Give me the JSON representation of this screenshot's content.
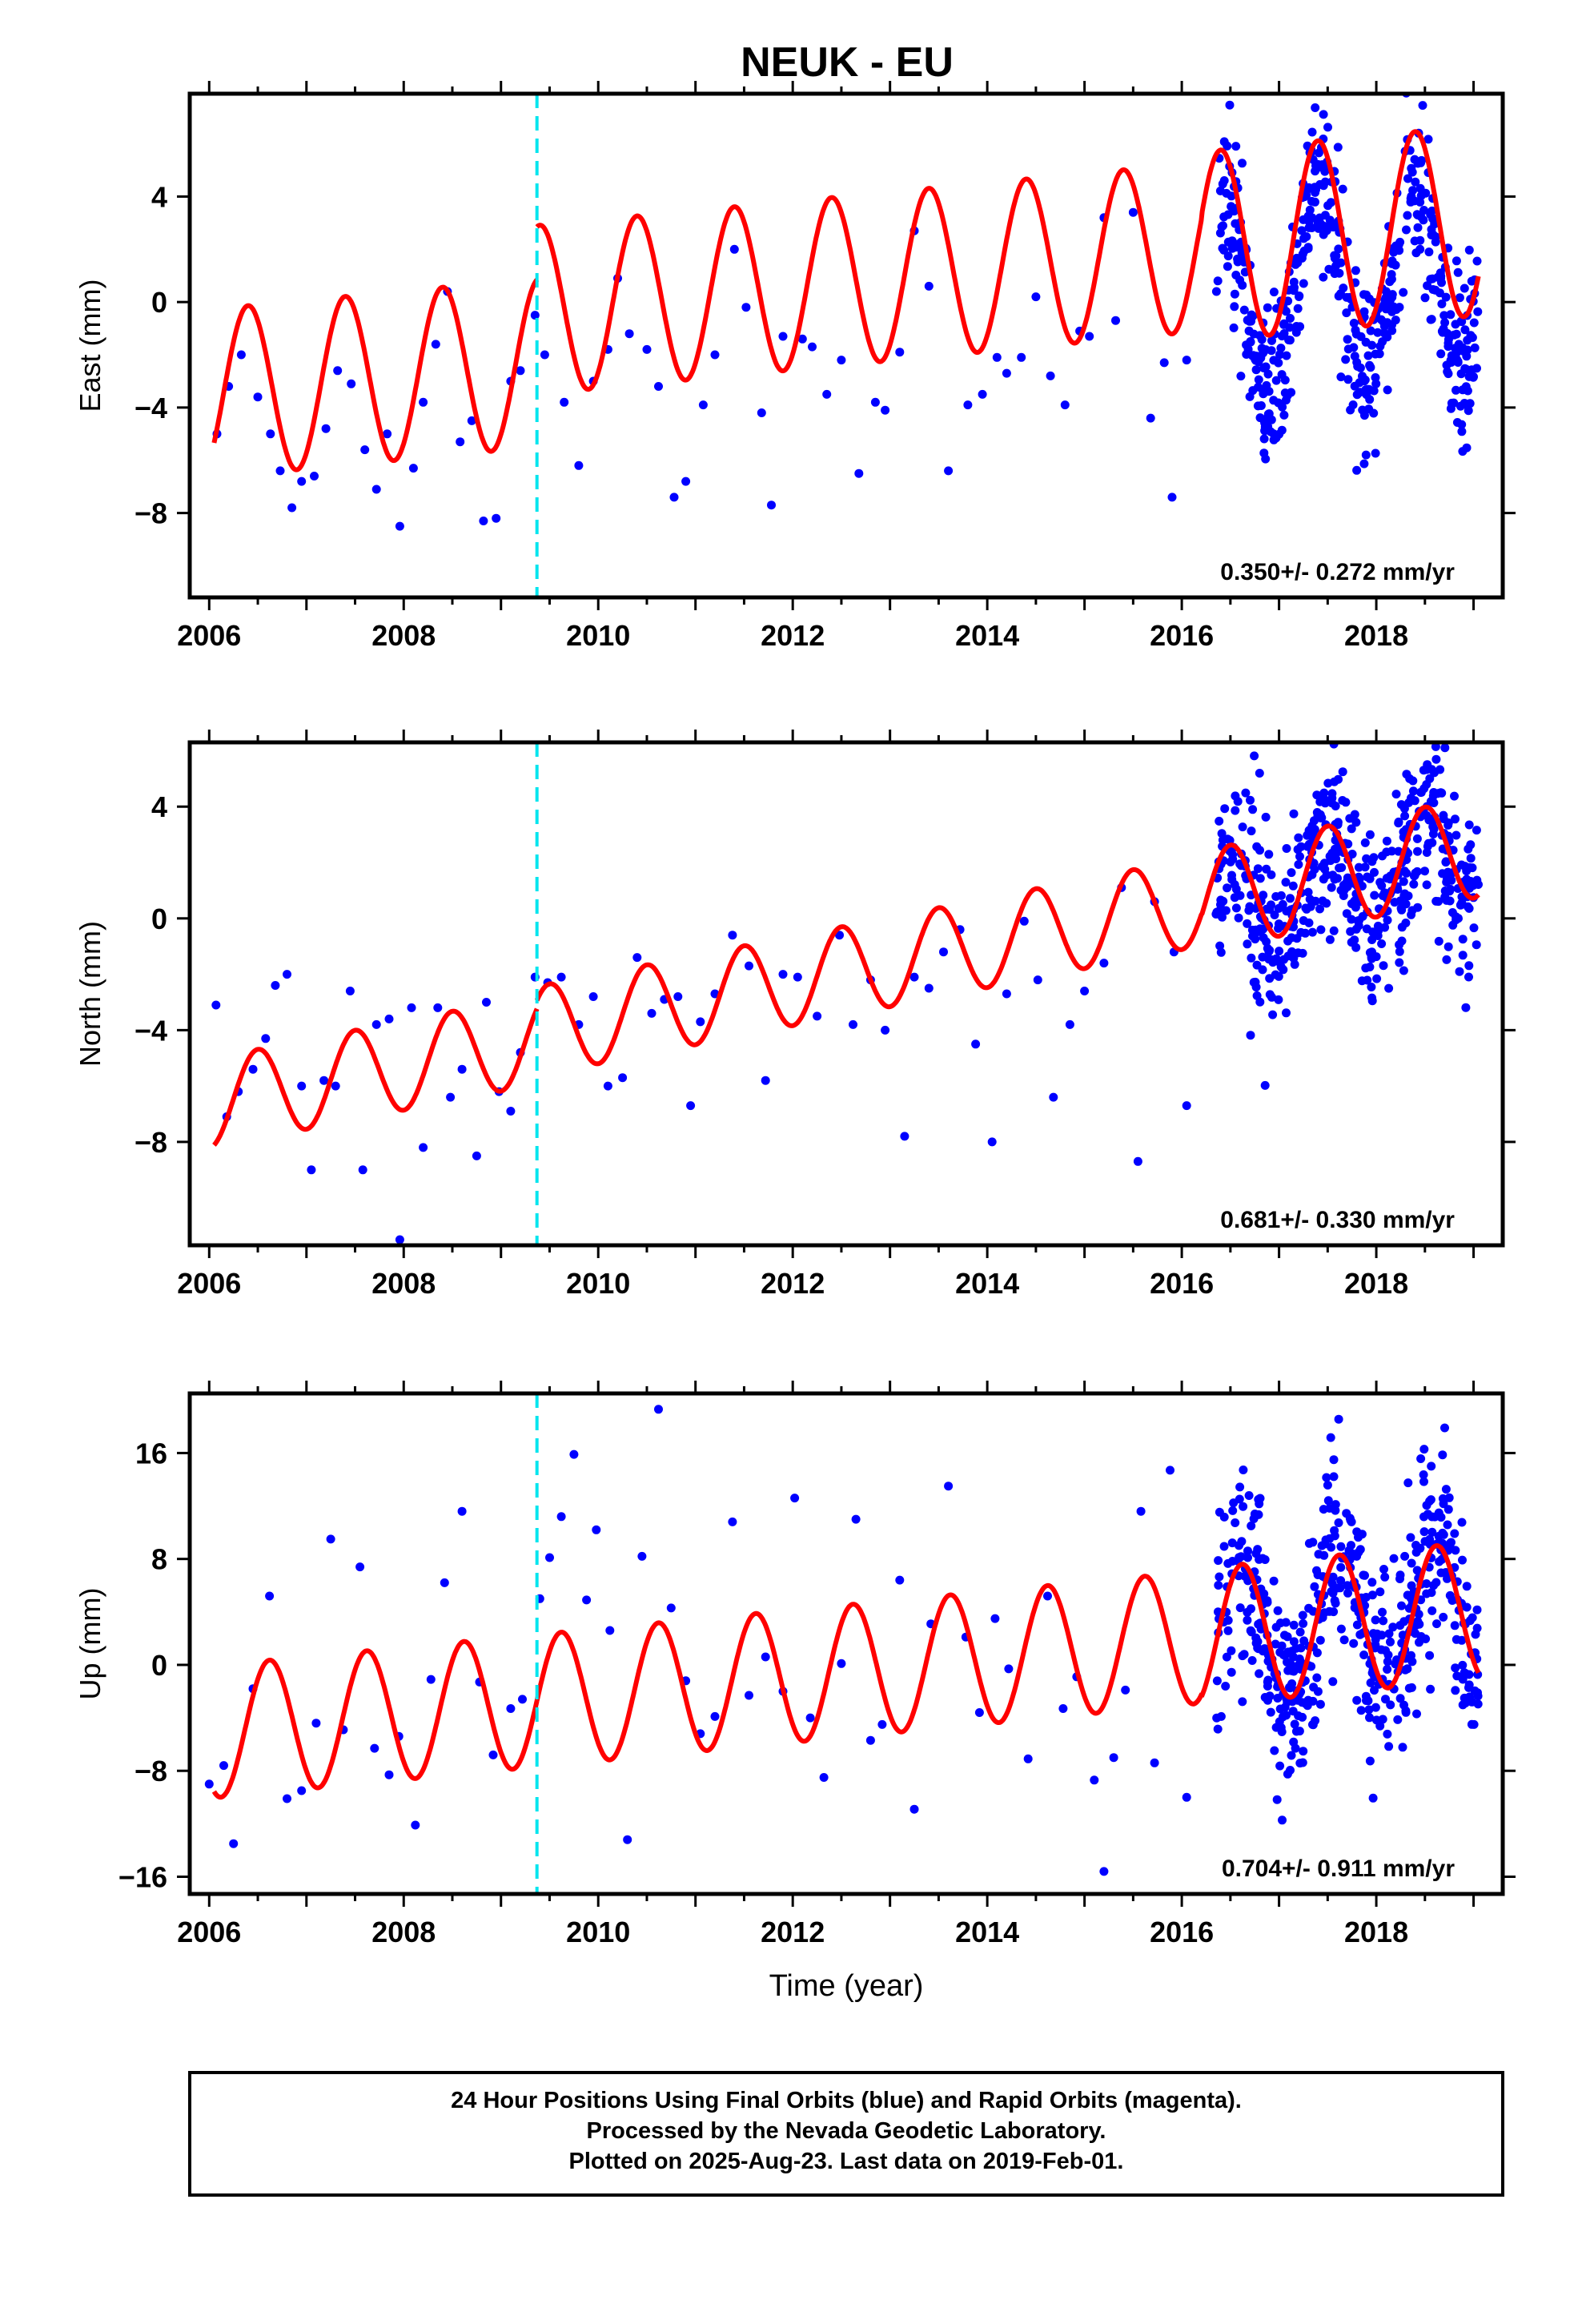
{
  "title": "NEUK - EU",
  "footer": {
    "line1": "24 Hour Positions Using Final Orbits (blue) and Rapid Orbits (magenta).",
    "line2": "Processed by the Nevada Geodetic Laboratory.",
    "line3": "Plotted on 2025-Aug-23. Last data on 2019-Feb-01."
  },
  "colors": {
    "points": "#0000ff",
    "model": "#ff0000",
    "equipment_change": "#00e5ee",
    "frame": "#000000"
  },
  "chart_data": [
    {
      "type": "scatter",
      "title": "NEUK - EU",
      "ylabel": "East (mm)",
      "xlabel": "",
      "xlim": [
        2005.8,
        2019.3
      ],
      "ylim": [
        -11.2,
        7.9
      ],
      "xticks": [
        2006,
        2008,
        2010,
        2012,
        2014,
        2016,
        2018
      ],
      "yticks": [
        4,
        0,
        -4,
        -8
      ],
      "grid": false,
      "rate_label": "0.350+/- 0.272 mm/yr",
      "equipment_change_year": 2009.37,
      "series": [
        {
          "kind": "points",
          "x": [
            2006.08,
            2006.2,
            2006.33,
            2006.5,
            2006.63,
            2006.73,
            2006.85,
            2006.95,
            2007.08,
            2007.2,
            2007.32,
            2007.46,
            2007.6,
            2007.72,
            2007.83,
            2007.96,
            2008.1,
            2008.2,
            2008.33,
            2008.45,
            2008.58,
            2008.7,
            2008.82,
            2008.95,
            2009.1,
            2009.2,
            2009.35,
            2009.45,
            2009.65,
            2009.8,
            2009.95,
            2010.1,
            2010.2,
            2010.32,
            2010.5,
            2010.62,
            2010.78,
            2010.9,
            2011.08,
            2011.2,
            2011.4,
            2011.52,
            2011.68,
            2011.78,
            2011.9,
            2012.1,
            2012.2,
            2012.35,
            2012.5,
            2012.68,
            2012.85,
            2012.95,
            2013.1,
            2013.25,
            2013.4,
            2013.6,
            2013.8,
            2013.95,
            2014.1,
            2014.2,
            2014.35,
            2014.5,
            2014.65,
            2014.8,
            2014.95,
            2015.05,
            2015.2,
            2015.32,
            2015.5,
            2015.68,
            2015.82,
            2015.9,
            2016.05
          ],
          "y": [
            -5.0,
            -3.2,
            -2.0,
            -3.6,
            -5.0,
            -6.4,
            -7.8,
            -6.8,
            -6.6,
            -4.8,
            -2.6,
            -3.1,
            -5.6,
            -7.1,
            -5.0,
            -8.5,
            -6.3,
            -3.8,
            -1.6,
            0.4,
            -5.3,
            -4.5,
            -8.3,
            -8.2,
            -3.0,
            -2.6,
            -0.5,
            -2.0,
            -3.8,
            -6.2,
            -3.0,
            -1.8,
            0.9,
            -1.2,
            -1.8,
            -3.2,
            -7.4,
            -6.8,
            -3.9,
            -2.0,
            2.0,
            -0.2,
            -4.2,
            -7.7,
            -1.3,
            -1.4,
            -1.7,
            -3.5,
            -2.2,
            -6.5,
            -3.8,
            -4.1,
            -1.9,
            2.7,
            0.6,
            -6.4,
            -3.9,
            -3.5,
            -2.1,
            -2.7,
            -2.1,
            0.2,
            -2.8,
            -3.9,
            -1.1,
            -1.3,
            3.2,
            -0.7,
            3.4,
            -4.4,
            -2.3,
            -7.4,
            -2.2
          ]
        },
        {
          "kind": "dense_cloud",
          "x_range": [
            2016.35,
            2019.05
          ],
          "annual_amplitude": 3.6,
          "trend_offset": 0.5,
          "scatter": 1.6
        }
      ]
    },
    {
      "type": "scatter",
      "title": "",
      "ylabel": "North (mm)",
      "xlabel": "",
      "xlim": [
        2005.8,
        2019.3
      ],
      "ylim": [
        -11.7,
        6.3
      ],
      "xticks": [
        2006,
        2008,
        2010,
        2012,
        2014,
        2016,
        2018
      ],
      "yticks": [
        4,
        0,
        -4,
        -8
      ],
      "grid": false,
      "rate_label": "0.681+/- 0.330 mm/yr",
      "equipment_change_year": 2009.37,
      "series": [
        {
          "kind": "points",
          "x": [
            2006.07,
            2006.18,
            2006.3,
            2006.45,
            2006.58,
            2006.68,
            2006.8,
            2006.95,
            2007.05,
            2007.18,
            2007.3,
            2007.45,
            2007.58,
            2007.72,
            2007.85,
            2007.96,
            2008.08,
            2008.2,
            2008.35,
            2008.48,
            2008.6,
            2008.75,
            2008.85,
            2008.98,
            2009.1,
            2009.2,
            2009.35,
            2009.48,
            2009.62,
            2009.8,
            2009.95,
            2010.1,
            2010.25,
            2010.4,
            2010.55,
            2010.68,
            2010.82,
            2010.95,
            2011.05,
            2011.2,
            2011.38,
            2011.55,
            2011.72,
            2011.9,
            2012.05,
            2012.25,
            2012.48,
            2012.62,
            2012.8,
            2012.95,
            2013.15,
            2013.25,
            2013.4,
            2013.55,
            2013.72,
            2013.88,
            2014.05,
            2014.2,
            2014.38,
            2014.52,
            2014.68,
            2014.85,
            2015.0,
            2015.2,
            2015.38,
            2015.55,
            2015.72,
            2015.92,
            2016.05
          ],
          "y": [
            -3.1,
            -7.1,
            -6.2,
            -5.4,
            -4.3,
            -2.4,
            -2.0,
            -6.0,
            -9.0,
            -5.8,
            -6.0,
            -2.6,
            -9.0,
            -3.8,
            -3.6,
            -11.5,
            -3.2,
            -8.2,
            -3.2,
            -6.4,
            -5.4,
            -8.5,
            -3.0,
            -6.2,
            -6.9,
            -4.8,
            -2.1,
            -2.3,
            -2.1,
            -3.8,
            -2.8,
            -6.0,
            -5.7,
            -1.4,
            -3.4,
            -2.9,
            -2.8,
            -6.7,
            -3.7,
            -2.7,
            -0.6,
            -1.7,
            -5.8,
            -2.0,
            -2.1,
            -3.5,
            -0.6,
            -3.8,
            -2.2,
            -4.0,
            -7.8,
            -2.1,
            -2.5,
            -1.2,
            -0.4,
            -4.5,
            -8.0,
            -2.7,
            -0.1,
            -2.2,
            -6.4,
            -3.8,
            -2.6,
            -1.6,
            1.1,
            -8.7,
            0.6,
            -1.2,
            -6.7
          ]
        },
        {
          "kind": "dense_cloud",
          "x_range": [
            2016.35,
            2019.05
          ],
          "annual_amplitude": 1.8,
          "trend_offset": 0.6,
          "scatter": 1.6
        }
      ]
    },
    {
      "type": "scatter",
      "title": "",
      "ylabel": "Up (mm)",
      "xlabel": "Time (year)",
      "xlim": [
        2005.8,
        2019.3
      ],
      "ylim": [
        -17.3,
        20.5
      ],
      "xticks": [
        2006,
        2008,
        2010,
        2012,
        2014,
        2016,
        2018
      ],
      "yticks": [
        16,
        8,
        0,
        -8,
        -16
      ],
      "grid": false,
      "rate_label": "0.704+/- 0.911 mm/yr",
      "equipment_change_year": 2009.37,
      "series": [
        {
          "kind": "points",
          "x": [
            2006.0,
            2006.15,
            2006.25,
            2006.45,
            2006.62,
            2006.8,
            2006.95,
            2007.1,
            2007.25,
            2007.38,
            2007.55,
            2007.7,
            2007.85,
            2007.95,
            2008.12,
            2008.28,
            2008.42,
            2008.6,
            2008.78,
            2008.92,
            2009.1,
            2009.22,
            2009.4,
            2009.5,
            2009.62,
            2009.75,
            2009.88,
            2009.98,
            2010.12,
            2010.3,
            2010.45,
            2010.62,
            2010.75,
            2010.9,
            2011.05,
            2011.2,
            2011.38,
            2011.55,
            2011.72,
            2011.9,
            2012.02,
            2012.18,
            2012.32,
            2012.5,
            2012.65,
            2012.8,
            2012.92,
            2013.1,
            2013.25,
            2013.42,
            2013.6,
            2013.78,
            2013.92,
            2014.08,
            2014.22,
            2014.42,
            2014.62,
            2014.78,
            2014.92,
            2015.1,
            2015.2,
            2015.3,
            2015.42,
            2015.58,
            2015.72,
            2015.88,
            2016.05
          ],
          "y": [
            -9.0,
            -7.6,
            -13.5,
            -1.8,
            5.2,
            -10.1,
            -9.5,
            -4.4,
            9.5,
            -4.9,
            7.4,
            -6.3,
            -8.3,
            -5.4,
            -12.1,
            -1.1,
            6.2,
            11.6,
            -1.3,
            -6.8,
            -3.3,
            -2.6,
            5.0,
            8.1,
            11.2,
            15.9,
            4.9,
            10.2,
            2.6,
            -13.2,
            8.2,
            19.3,
            4.3,
            -1.2,
            -5.2,
            -3.9,
            10.8,
            -2.3,
            0.6,
            -2.0,
            12.6,
            -4.0,
            -8.5,
            0.1,
            11.0,
            -5.7,
            -4.5,
            6.4,
            -10.9,
            3.1,
            13.5,
            2.1,
            -3.6,
            3.5,
            -0.3,
            -7.1,
            5.2,
            -3.3,
            -0.9,
            -8.7,
            -15.6,
            -7.0,
            -1.9,
            11.6,
            -7.4,
            14.7,
            -10.0
          ]
        },
        {
          "kind": "dense_cloud",
          "x_range": [
            2016.35,
            2019.05
          ],
          "annual_amplitude": 5.2,
          "trend_offset": 0.4,
          "scatter": 3.8
        }
      ]
    }
  ]
}
